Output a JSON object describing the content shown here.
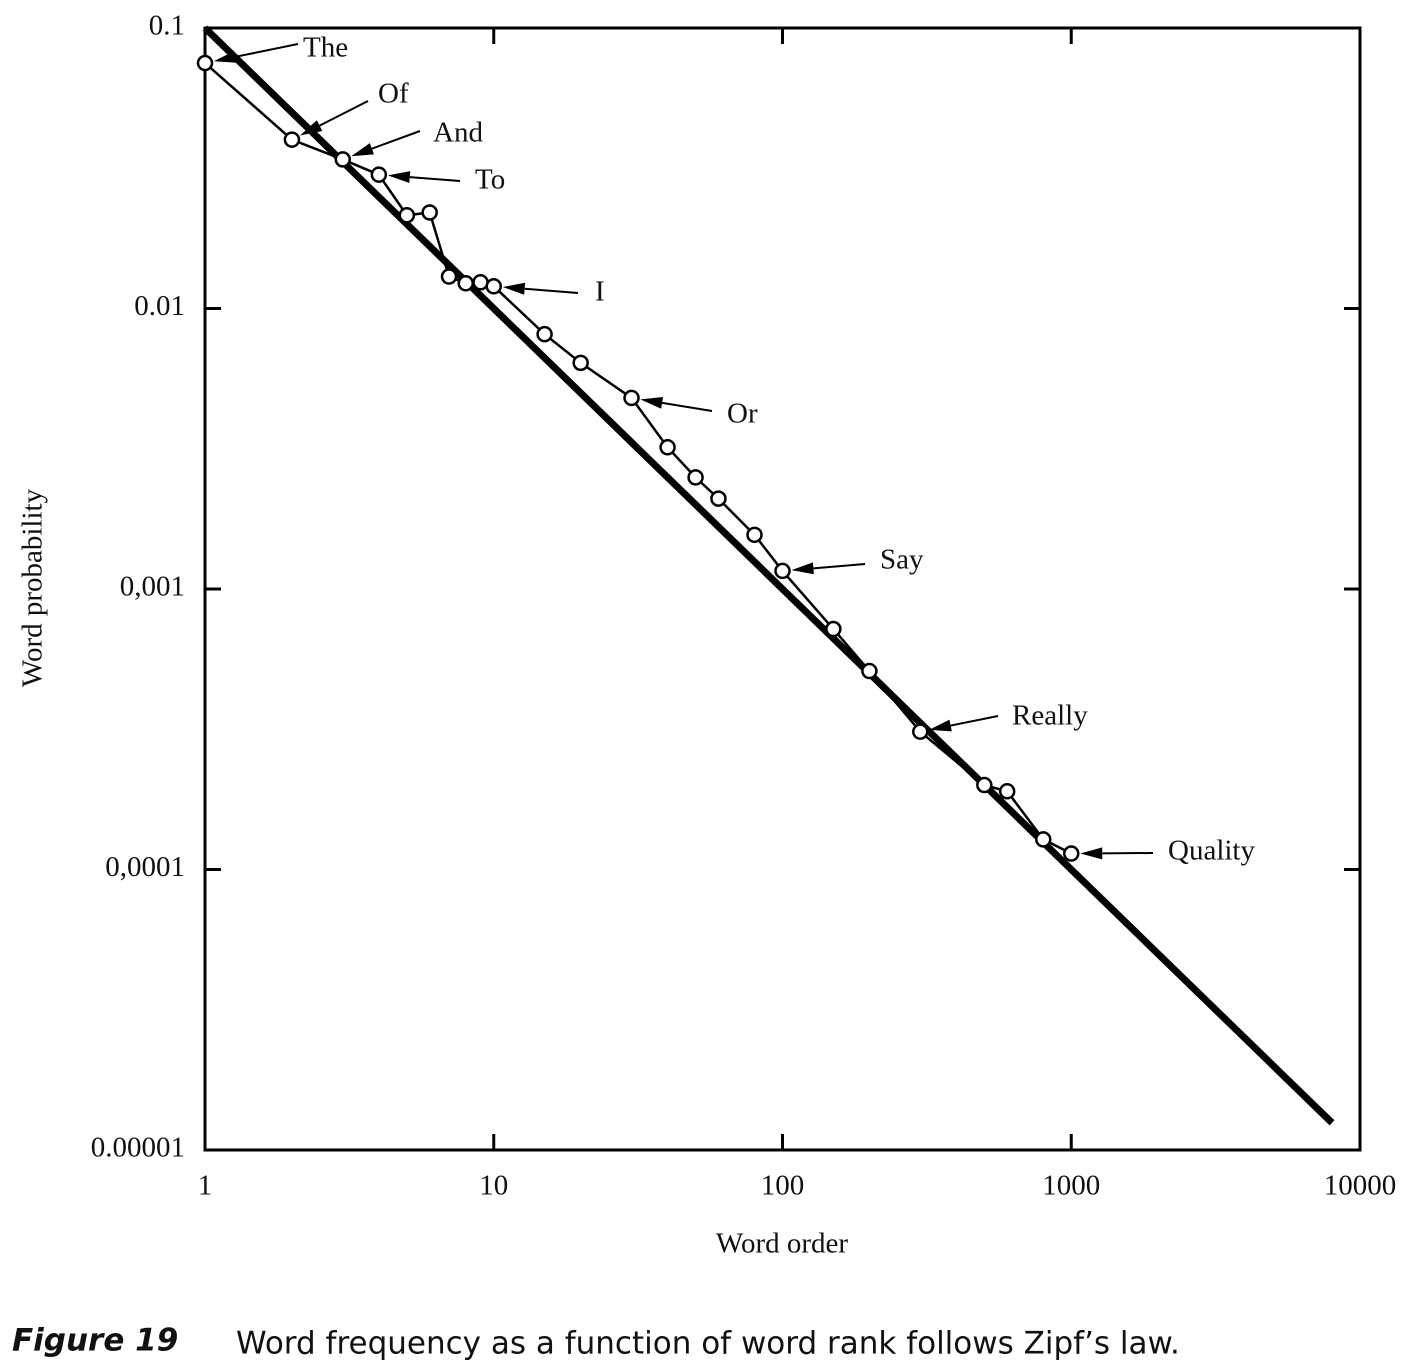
{
  "chart_data": {
    "type": "line",
    "log_x": true,
    "log_y": true,
    "xlabel": "Word order",
    "ylabel": "Word probability",
    "xlim": [
      1,
      10000
    ],
    "xticks": [
      1,
      10,
      100,
      1000,
      10000
    ],
    "ylim": [
      1e-05,
      0.1
    ],
    "yticks": [
      1e-05,
      {
        "value": 0.0001,
        "label": "0,0001"
      },
      {
        "value": 0.001,
        "label": "0,001"
      },
      0.01,
      0.1
    ],
    "series": [
      {
        "color": "#000000",
        "x": [
          1,
          2,
          3,
          4,
          5,
          6,
          7,
          8,
          9,
          10,
          15,
          20,
          30,
          40,
          50,
          60,
          80,
          100,
          150,
          200,
          300,
          500,
          600,
          800,
          1000
        ],
        "values": [
          0.075,
          0.04,
          0.034,
          0.03,
          0.0215,
          0.022,
          0.013,
          0.0123,
          0.0124,
          0.012,
          0.0081,
          0.0064,
          0.0048,
          0.0032,
          0.0025,
          0.0021,
          0.00156,
          0.00116,
          0.00072,
          0.00051,
          0.00031,
          0.0002,
          0.00019,
          0.000128,
          0.000114
        ]
      },
      {
        "color": "#000000",
        "x": [
          1,
          8000
        ],
        "values": [
          0.1,
          1.25e-05
        ]
      }
    ],
    "annotations": [
      "The",
      "Of",
      "And",
      "To",
      "I",
      "Or",
      "Say",
      "Really",
      "Quality"
    ]
  },
  "caption": {
    "label": "Figure 19",
    "text": "Word frequency as a function of word rank follows Zipf’s law."
  }
}
